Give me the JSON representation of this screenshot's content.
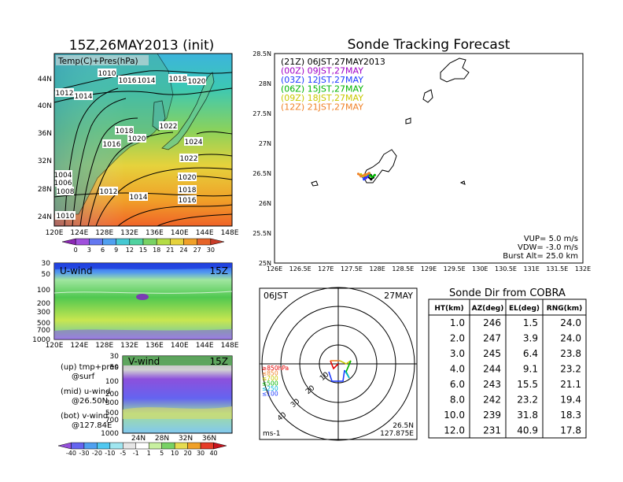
{
  "left": {
    "title": "15Z,26MAY2013 (init)",
    "top_map": {
      "label": "Temp(C)+Pres(hPa)",
      "lat_ticks": [
        "44N",
        "40N",
        "36N",
        "32N",
        "28N",
        "24N"
      ],
      "lon_ticks": [
        "120E",
        "124E",
        "128E",
        "132E",
        "136E",
        "140E",
        "144E",
        "148E"
      ],
      "isobars": [
        "1010",
        "1016",
        "1014",
        "1018",
        "1020",
        "1012",
        "1014",
        "1018",
        "1020",
        "1022",
        "1016",
        "1024",
        "1022",
        "1004",
        "1006",
        "1008",
        "1012",
        "1014",
        "1020",
        "1018",
        "1016",
        "1010"
      ],
      "colorbar": [
        0,
        3,
        6,
        9,
        12,
        15,
        18,
        21,
        24,
        27,
        30
      ]
    },
    "u_wind": {
      "label": "U-wind",
      "time": "15Z",
      "p_ticks": [
        "30",
        "50",
        "100",
        "200",
        "300",
        "500",
        "700",
        "1000"
      ],
      "lon_ticks": [
        "120E",
        "124E",
        "128E",
        "132E",
        "136E",
        "140E",
        "144E",
        "148E"
      ]
    },
    "v_wind": {
      "label": "V-wind",
      "time": "15Z",
      "p_ticks": [
        "30",
        "50",
        "100",
        "200",
        "300",
        "500",
        "700",
        "1000"
      ],
      "lat_ticks": [
        "24N",
        "28N",
        "32N",
        "36N"
      ]
    },
    "notes": [
      "(up) tmp+pres",
      "@surf",
      "(mid) u-wind",
      "@26.50N",
      "(bot) v-wind",
      "@127.84E"
    ],
    "wind_colorbar": [
      -40,
      -30,
      -20,
      -10,
      -5,
      -1,
      1,
      5,
      10,
      20,
      30,
      40
    ]
  },
  "tracking": {
    "title": "Sonde Tracking Forecast",
    "legend": [
      {
        "label": "(21Z) 06JST,27MAY2013",
        "color": "#000000"
      },
      {
        "label": "(00Z) 09JST,27MAY",
        "color": "#a000c8"
      },
      {
        "label": "(03Z) 12JST,27MAY",
        "color": "#1e3cff"
      },
      {
        "label": "(06Z) 15JST,27MAY",
        "color": "#00b400"
      },
      {
        "label": "(09Z) 18JST,27MAY",
        "color": "#c8c800"
      },
      {
        "label": "(12Z) 21JST,27MAY",
        "color": "#f08228"
      }
    ],
    "params": [
      "VUP= 5.0 m/s",
      "VDW= -3.0 m/s",
      "Burst Alt= 25.0 km"
    ]
  },
  "chart_data": {
    "type": "scatter",
    "title": "Sonde Tracking Forecast",
    "xlabel": "",
    "ylabel": "",
    "xlim": [
      126,
      132
    ],
    "ylim": [
      25,
      28.5
    ],
    "x_ticks": [
      "126E",
      "126.5E",
      "127E",
      "127.5E",
      "128E",
      "128.5E",
      "129E",
      "129.5E",
      "130E",
      "130.5E",
      "131E",
      "131.5E",
      "132E"
    ],
    "y_ticks": [
      "25N",
      "25.5N",
      "26N",
      "26.5N",
      "27N",
      "27.5N",
      "28N",
      "28.5N"
    ],
    "series": [
      {
        "name": "(21Z) 06JST,27MAY2013",
        "color": "#000000",
        "x": [
          127.84,
          127.87,
          127.92,
          127.88,
          127.8
        ],
        "y": [
          26.5,
          26.47,
          26.43,
          26.4,
          26.45
        ]
      },
      {
        "name": "(00Z) 09JST,27MAY",
        "color": "#a000c8",
        "x": [
          127.84,
          127.82,
          127.78,
          127.75
        ],
        "y": [
          26.5,
          26.46,
          26.42,
          26.45
        ]
      },
      {
        "name": "(03Z) 12JST,27MAY",
        "color": "#1e3cff",
        "x": [
          127.84,
          127.8,
          127.74,
          127.72
        ],
        "y": [
          26.5,
          26.44,
          26.4,
          26.44
        ]
      },
      {
        "name": "(06Z) 15JST,27MAY",
        "color": "#00b400",
        "x": [
          127.84,
          127.86,
          127.9,
          127.95
        ],
        "y": [
          26.5,
          26.46,
          26.44,
          26.47
        ]
      },
      {
        "name": "(09Z) 18JST,27MAY",
        "color": "#c8c800",
        "x": [
          127.84,
          127.78,
          127.72,
          127.68
        ],
        "y": [
          26.5,
          26.47,
          26.45,
          26.48
        ]
      },
      {
        "name": "(12Z) 21JST,27MAY",
        "color": "#f08228",
        "x": [
          127.84,
          127.76,
          127.68,
          127.63
        ],
        "y": [
          26.5,
          26.48,
          26.45,
          26.49
        ]
      }
    ]
  },
  "polar": {
    "time_label": "06JST",
    "date_label": "27MAY",
    "ring_labels": [
      "10",
      "20",
      "30",
      "40"
    ],
    "levels": [
      {
        "label": "≥850hPa",
        "color": "#e60000"
      },
      {
        "label": "≤850",
        "color": "#f08228"
      },
      {
        "label": "≤700",
        "color": "#c8c800"
      },
      {
        "label": "≤500",
        "color": "#00b400"
      },
      {
        "label": "≤250",
        "color": "#00b4dc"
      },
      {
        "label": "≤100",
        "color": "#1e3cff"
      }
    ],
    "unit": "ms-1",
    "loc_lat": "26.5N",
    "loc_lon": "127.875E"
  },
  "sonde_table": {
    "title": "Sonde Dir from COBRA",
    "headers": [
      "HT(km)",
      "AZ(deg)",
      "EL(deg)",
      "RNG(km)"
    ],
    "rows": [
      [
        "1.0",
        "246",
        "1.5",
        "24.0"
      ],
      [
        "2.0",
        "247",
        "3.9",
        "24.0"
      ],
      [
        "3.0",
        "245",
        "6.4",
        "23.8"
      ],
      [
        "4.0",
        "244",
        "9.1",
        "23.2"
      ],
      [
        "6.0",
        "243",
        "15.5",
        "21.1"
      ],
      [
        "8.0",
        "242",
        "23.2",
        "19.4"
      ],
      [
        "10.0",
        "239",
        "31.8",
        "18.3"
      ],
      [
        "12.0",
        "231",
        "40.9",
        "17.8"
      ]
    ]
  }
}
